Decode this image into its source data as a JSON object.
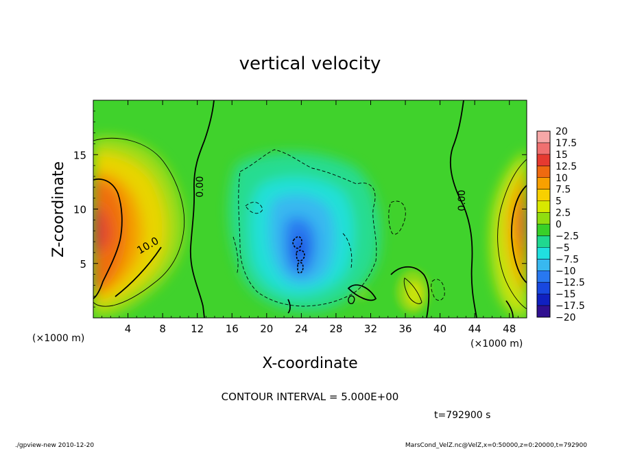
{
  "chart_data": {
    "type": "heatmap",
    "title": "vertical velocity",
    "xlabel": "X-coordinate",
    "ylabel": "Z-coordinate",
    "x_unit_label": "(×1000 m)",
    "xlim": [
      0,
      50
    ],
    "ylim": [
      0,
      20
    ],
    "x_ticks": [
      4,
      8,
      12,
      16,
      20,
      24,
      28,
      32,
      36,
      40,
      44,
      48
    ],
    "y_ticks": [
      5,
      10,
      15
    ],
    "colorbar": {
      "levels": [
        "20",
        "17.5",
        "15",
        "12.5",
        "10",
        "7.5",
        "5",
        "2.5",
        "0",
        "−2.5",
        "−5",
        "−7.5",
        "−10",
        "−12.5",
        "−15",
        "−17.5",
        "−20"
      ],
      "colors": [
        "#f7a8a8",
        "#f07070",
        "#e63a30",
        "#ef6a10",
        "#f8a000",
        "#f8d000",
        "#d8e800",
        "#90dd10",
        "#38d028",
        "#20d890",
        "#20e0e0",
        "#38b8f0",
        "#2878f0",
        "#1848e0",
        "#1020c0",
        "#301090"
      ]
    },
    "contour_labels": [
      "0.00",
      "0.00",
      "10.0"
    ],
    "contour_interval": "CONTOUR INTERVAL = 5.000E+00",
    "time": "t=792900 s"
  },
  "footer": {
    "left": "./gpview-new  2010-12-20",
    "right": "MarsCond_VelZ.nc@VelZ,x=0:50000,z=0:20000,t=792900"
  }
}
